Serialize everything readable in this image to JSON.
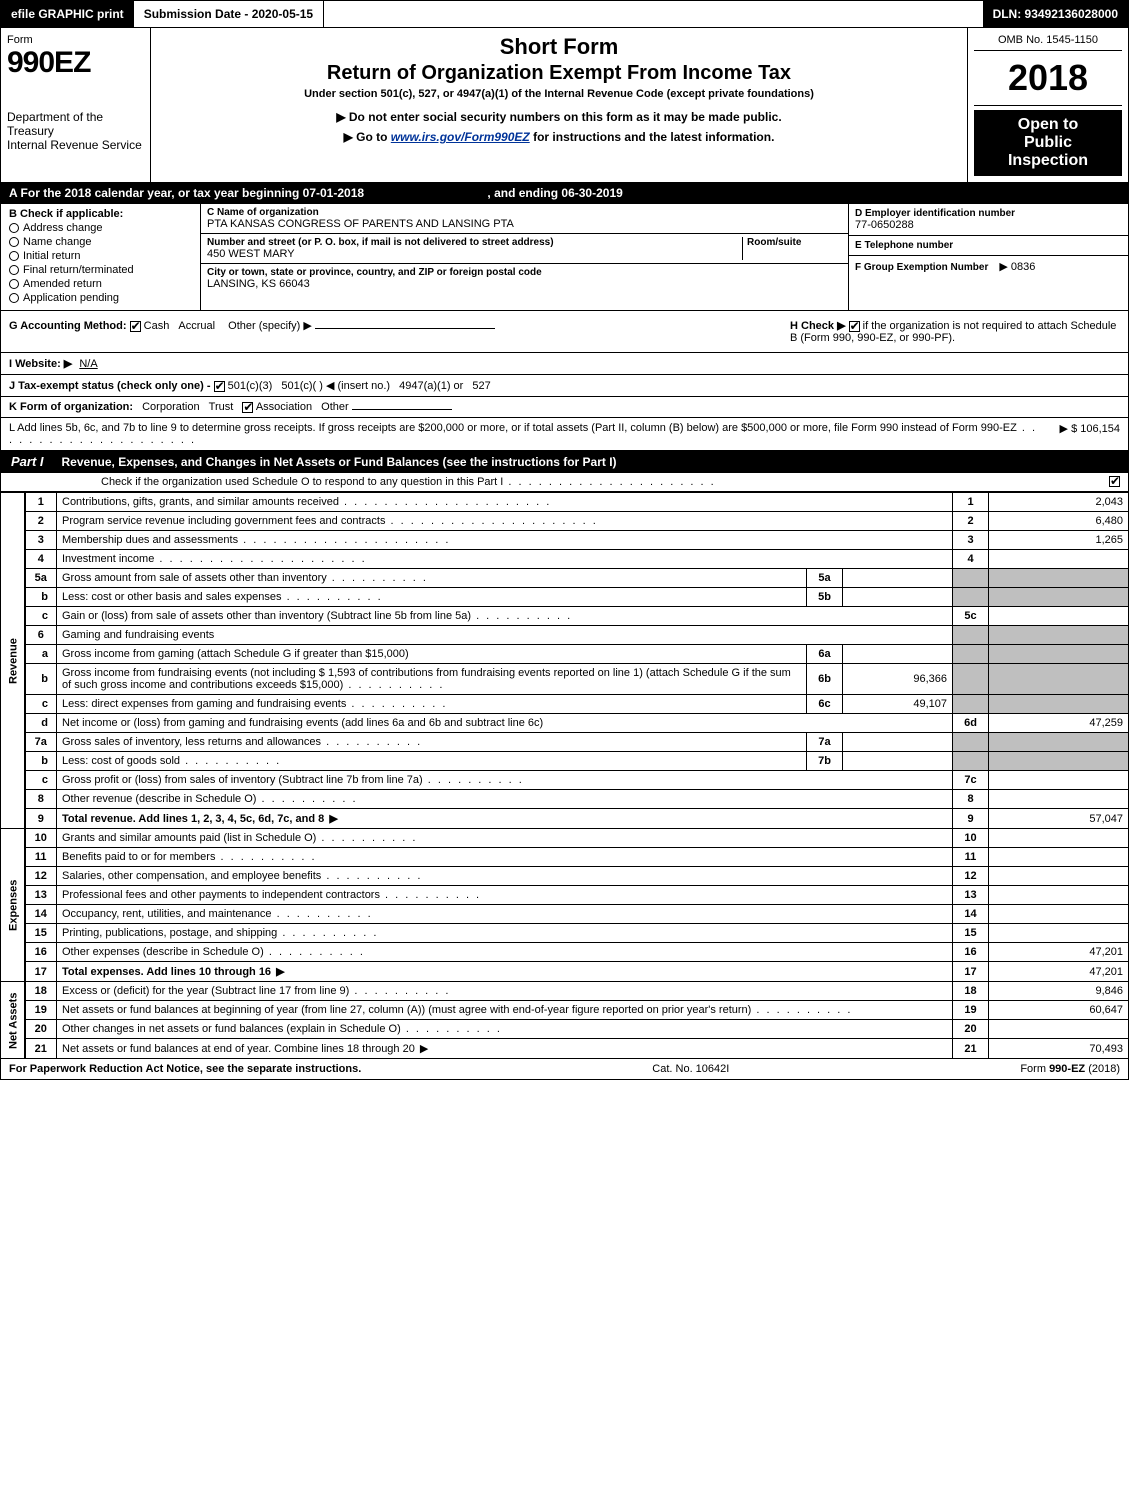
{
  "topbar": {
    "efile": "efile GRAPHIC print",
    "sub_label": "Submission Date - 2020-05-15",
    "dln": "DLN: 93492136028000"
  },
  "header": {
    "form": "Form",
    "formno": "990EZ",
    "short": "Short Form",
    "return": "Return of Organization Exempt From Income Tax",
    "under": "Under section 501(c), 527, or 4947(a)(1) of the Internal Revenue Code (except private foundations)",
    "do_not": "▶ Do not enter social security numbers on this form as it may be made public.",
    "goto_pre": "▶ Go to ",
    "goto_link": "www.irs.gov/Form990EZ",
    "goto_post": " for instructions and the latest information.",
    "dept1": "Department of the Treasury",
    "dept2": "Internal Revenue Service",
    "omb": "OMB No. 1545-1150",
    "year": "2018",
    "open1": "Open to",
    "open2": "Public",
    "open3": "Inspection"
  },
  "period": {
    "text_a": "A  For the 2018 calendar year, or tax year beginning 07-01-2018",
    "text_b": ", and ending 06-30-2019"
  },
  "sectionB": {
    "title": "B  Check if applicable:",
    "items": [
      "Address change",
      "Name change",
      "Initial return",
      "Final return/terminated",
      "Amended return",
      "Application pending"
    ]
  },
  "sectionC": {
    "c_label": "C Name of organization",
    "c_name": "PTA KANSAS CONGRESS OF PARENTS AND LANSING PTA",
    "street_label": "Number and street (or P. O. box, if mail is not delivered to street address)",
    "room_label": "Room/suite",
    "street": "450 WEST MARY",
    "city_label": "City or town, state or province, country, and ZIP or foreign postal code",
    "city": "LANSING, KS  66043"
  },
  "sectionD": {
    "d_label": "D Employer identification number",
    "d_val": "77-0650288",
    "e_label": "E Telephone number",
    "e_val": "",
    "f_label": "F Group Exemption Number",
    "f_val": "▶ 0836"
  },
  "accounting": {
    "g_label": "G Accounting Method:",
    "cash": "Cash",
    "accr": "Accrual",
    "other": "Other (specify) ▶",
    "h_text_pre": "H  Check ▶ ",
    "h_text": " if the organization is not required to attach Schedule B (Form 990, 990-EZ, or 990-PF)."
  },
  "website": {
    "label": "I Website: ▶",
    "val": "N/A"
  },
  "taxstatus": {
    "label": "J Tax-exempt status (check only one) -",
    "a": "501(c)(3)",
    "b": "501(c)(  ) ◀ (insert no.)",
    "c": "4947(a)(1) or",
    "d": "527"
  },
  "kform": {
    "label": "K Form of organization:",
    "a": "Corporation",
    "b": "Trust",
    "c": "Association",
    "d": "Other"
  },
  "lline": {
    "text": "L Add lines 5b, 6c, and 7b to line 9 to determine gross receipts. If gross receipts are $200,000 or more, or if total assets (Part II, column (B) below) are $500,000 or more, file Form 990 instead of Form 990-EZ",
    "val": "▶ $ 106,154"
  },
  "part1": {
    "tag": "Part I",
    "title": "Revenue, Expenses, and Changes in Net Assets or Fund Balances (see the instructions for Part I)",
    "schedO": "Check if the organization used Schedule O to respond to any question in this Part I"
  },
  "sections": {
    "revenue": "Revenue",
    "expenses": "Expenses",
    "netassets": "Net Assets"
  },
  "lines": [
    {
      "sec": "rev",
      "no": "1",
      "desc": "Contributions, gifts, grants, and similar amounts received",
      "rno": "1",
      "rval": "2,043",
      "dots": "dots"
    },
    {
      "sec": "rev",
      "no": "2",
      "desc": "Program service revenue including government fees and contracts",
      "rno": "2",
      "rval": "6,480",
      "dots": "dots"
    },
    {
      "sec": "rev",
      "no": "3",
      "desc": "Membership dues and assessments",
      "rno": "3",
      "rval": "1,265",
      "dots": "dots"
    },
    {
      "sec": "rev",
      "no": "4",
      "desc": "Investment income",
      "rno": "4",
      "rval": "",
      "dots": "dots"
    },
    {
      "sec": "rev",
      "no": "5a",
      "desc": "Gross amount from sale of assets other than inventory",
      "subno": "5a",
      "subval": "",
      "gray_r": true,
      "dots": "dots-short"
    },
    {
      "sec": "rev",
      "no": "b",
      "indent": true,
      "desc": "Less: cost or other basis and sales expenses",
      "subno": "5b",
      "subval": "",
      "gray_r": true,
      "dots": "dots-short"
    },
    {
      "sec": "rev",
      "no": "c",
      "indent": true,
      "desc": "Gain or (loss) from sale of assets other than inventory (Subtract line 5b from line 5a)",
      "rno": "5c",
      "rval": "",
      "dots": "dots-short"
    },
    {
      "sec": "rev",
      "no": "6",
      "desc": "Gaming and fundraising events",
      "gray_r": true,
      "noval": true
    },
    {
      "sec": "rev",
      "no": "a",
      "indent": true,
      "desc": "Gross income from gaming (attach Schedule G if greater than $15,000)",
      "subno": "6a",
      "subval": "",
      "gray_r": true
    },
    {
      "sec": "rev",
      "no": "b",
      "indent": true,
      "desc": "Gross income from fundraising events (not including $  1,593          of contributions from fundraising events reported on line 1) (attach Schedule G if the sum of such gross income and contributions exceeds $15,000)",
      "subno": "6b",
      "subval": "96,366",
      "gray_r": true,
      "dots": "dots-short"
    },
    {
      "sec": "rev",
      "no": "c",
      "indent": true,
      "desc": "Less: direct expenses from gaming and fundraising events",
      "subno": "6c",
      "subval": "49,107",
      "gray_r": true,
      "dots": "dots-short"
    },
    {
      "sec": "rev",
      "no": "d",
      "indent": true,
      "desc": "Net income or (loss) from gaming and fundraising events (add lines 6a and 6b and subtract line 6c)",
      "rno": "6d",
      "rval": "47,259"
    },
    {
      "sec": "rev",
      "no": "7a",
      "desc": "Gross sales of inventory, less returns and allowances",
      "subno": "7a",
      "subval": "",
      "gray_r": true,
      "dots": "dots-short"
    },
    {
      "sec": "rev",
      "no": "b",
      "indent": true,
      "desc": "Less: cost of goods sold",
      "subno": "7b",
      "subval": "",
      "gray_r": true,
      "dots": "dots-short"
    },
    {
      "sec": "rev",
      "no": "c",
      "indent": true,
      "desc": "Gross profit or (loss) from sales of inventory (Subtract line 7b from line 7a)",
      "rno": "7c",
      "rval": "",
      "dots": "dots-short"
    },
    {
      "sec": "rev",
      "no": "8",
      "desc": "Other revenue (describe in Schedule O)",
      "rno": "8",
      "rval": "",
      "dots": "dots-short"
    },
    {
      "sec": "rev",
      "no": "9",
      "desc": "Total revenue. Add lines 1, 2, 3, 4, 5c, 6d, 7c, and 8",
      "rno": "9",
      "rval": "57,047",
      "bold": true,
      "arrow": true,
      "dots": "dots-short"
    },
    {
      "sec": "exp",
      "no": "10",
      "desc": "Grants and similar amounts paid (list in Schedule O)",
      "rno": "10",
      "rval": "",
      "dots": "dots-short"
    },
    {
      "sec": "exp",
      "no": "11",
      "desc": "Benefits paid to or for members",
      "rno": "11",
      "rval": "",
      "dots": "dots-short"
    },
    {
      "sec": "exp",
      "no": "12",
      "desc": "Salaries, other compensation, and employee benefits",
      "rno": "12",
      "rval": "",
      "dots": "dots-short"
    },
    {
      "sec": "exp",
      "no": "13",
      "desc": "Professional fees and other payments to independent contractors",
      "rno": "13",
      "rval": "",
      "dots": "dots-short"
    },
    {
      "sec": "exp",
      "no": "14",
      "desc": "Occupancy, rent, utilities, and maintenance",
      "rno": "14",
      "rval": "",
      "dots": "dots-short"
    },
    {
      "sec": "exp",
      "no": "15",
      "desc": "Printing, publications, postage, and shipping",
      "rno": "15",
      "rval": "",
      "dots": "dots-short"
    },
    {
      "sec": "exp",
      "no": "16",
      "desc": "Other expenses (describe in Schedule O)",
      "rno": "16",
      "rval": "47,201",
      "dots": "dots-short"
    },
    {
      "sec": "exp",
      "no": "17",
      "desc": "Total expenses. Add lines 10 through 16",
      "rno": "17",
      "rval": "47,201",
      "bold": true,
      "arrow": true,
      "dots": "dots-short"
    },
    {
      "sec": "na",
      "no": "18",
      "desc": "Excess or (deficit) for the year (Subtract line 17 from line 9)",
      "rno": "18",
      "rval": "9,846",
      "dots": "dots-short"
    },
    {
      "sec": "na",
      "no": "19",
      "desc": "Net assets or fund balances at beginning of year (from line 27, column (A)) (must agree with end-of-year figure reported on prior year's return)",
      "rno": "19",
      "rval": "60,647",
      "dots": "dots-short"
    },
    {
      "sec": "na",
      "no": "20",
      "desc": "Other changes in net assets or fund balances (explain in Schedule O)",
      "rno": "20",
      "rval": "",
      "dots": "dots-short"
    },
    {
      "sec": "na",
      "no": "21",
      "desc": "Net assets or fund balances at end of year. Combine lines 18 through 20",
      "rno": "21",
      "rval": "70,493",
      "arrow": true,
      "dots": "dots-short"
    }
  ],
  "footer": {
    "left": "For Paperwork Reduction Act Notice, see the separate instructions.",
    "mid": "Cat. No. 10642I",
    "right": "Form 990-EZ (2018)"
  },
  "colors": {
    "black": "#000000",
    "white": "#ffffff",
    "gray": "#bfbfbf",
    "link": "#003399"
  }
}
